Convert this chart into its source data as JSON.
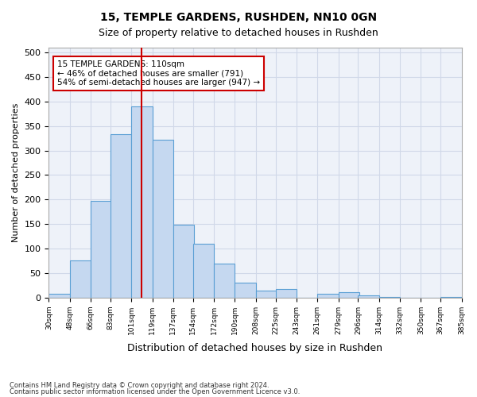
{
  "title1": "15, TEMPLE GARDENS, RUSHDEN, NN10 0GN",
  "title2": "Size of property relative to detached houses in Rushden",
  "xlabel": "Distribution of detached houses by size in Rushden",
  "ylabel": "Number of detached properties",
  "footnote1": "Contains HM Land Registry data © Crown copyright and database right 2024.",
  "footnote2": "Contains public sector information licensed under the Open Government Licence v3.0.",
  "bar_color": "#c5d8f0",
  "bar_edge_color": "#5a9fd4",
  "grid_color": "#d0d8e8",
  "background_color": "#eef2f9",
  "vline_value": 110,
  "vline_color": "#cc0000",
  "annotation_text": "15 TEMPLE GARDENS: 110sqm\n← 46% of detached houses are smaller (791)\n54% of semi-detached houses are larger (947) →",
  "annotation_box_color": "white",
  "annotation_box_edge": "#cc0000",
  "bin_edges": [
    30,
    48,
    66,
    83,
    101,
    119,
    137,
    154,
    172,
    190,
    208,
    225,
    243,
    261,
    279,
    296,
    314,
    332,
    350,
    367,
    385
  ],
  "bin_labels": [
    "30sqm",
    "48sqm",
    "66sqm",
    "83sqm",
    "101sqm",
    "119sqm",
    "137sqm",
    "154sqm",
    "172sqm",
    "190sqm",
    "208sqm",
    "225sqm",
    "243sqm",
    "261sqm",
    "279sqm",
    "296sqm",
    "314sqm",
    "332sqm",
    "350sqm",
    "367sqm",
    "385sqm"
  ],
  "bar_heights": [
    8,
    76,
    197,
    333,
    390,
    322,
    149,
    110,
    70,
    30,
    15,
    18,
    0,
    8,
    11,
    4,
    1,
    0,
    0,
    2
  ],
  "ylim": [
    0,
    510
  ],
  "yticks": [
    0,
    50,
    100,
    150,
    200,
    250,
    300,
    350,
    400,
    450,
    500
  ]
}
